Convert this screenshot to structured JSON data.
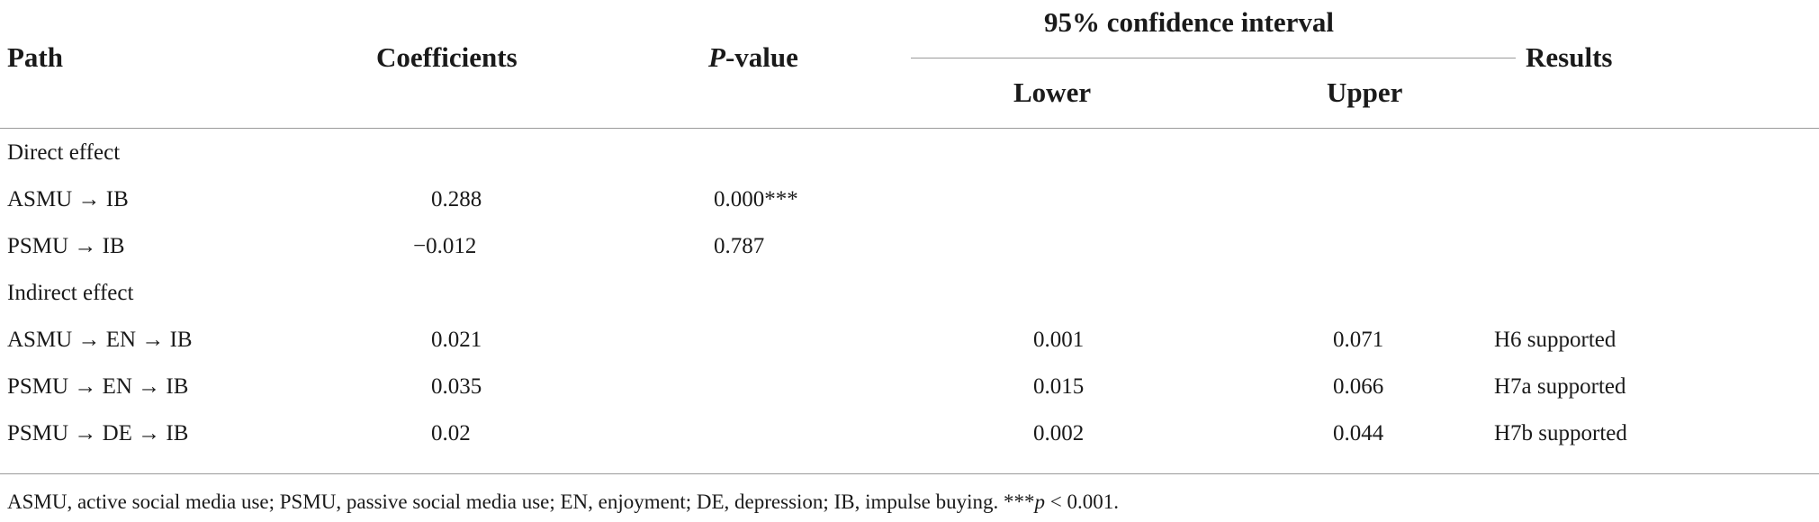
{
  "table": {
    "headers": {
      "path": "Path",
      "coefficients": "Coefficients",
      "p_value_italic": "P",
      "p_value_rest": "-value",
      "ci_group": "95% confidence interval",
      "lower": "Lower",
      "upper": "Upper",
      "results": "Results"
    },
    "sections": {
      "direct": "Direct effect",
      "indirect": "Indirect effect"
    },
    "rows": [
      {
        "path": "ASMU → IB",
        "coef": "0.288",
        "p": "0.000***",
        "lower": "",
        "upper": "",
        "result": ""
      },
      {
        "path": "PSMU → IB",
        "coef": "−0.012",
        "p": "0.787",
        "lower": "",
        "upper": "",
        "result": ""
      },
      {
        "path": "ASMU → EN → IB",
        "coef": "0.021",
        "p": "",
        "lower": "0.001",
        "upper": "0.071",
        "result": "H6 supported"
      },
      {
        "path": "PSMU → EN → IB",
        "coef": "0.035",
        "p": "",
        "lower": "0.015",
        "upper": "0.066",
        "result": "H7a supported"
      },
      {
        "path": "PSMU → DE → IB",
        "coef": "0.02",
        "p": "",
        "lower": "0.002",
        "upper": "0.044",
        "result": "H7b supported"
      }
    ],
    "footnote": {
      "text": "ASMU, active social media use; PSMU, passive social media use; EN, enjoyment; DE, depression; IB, impulse buying. ***",
      "p_italic": "p",
      "tail": " < 0.001."
    }
  }
}
